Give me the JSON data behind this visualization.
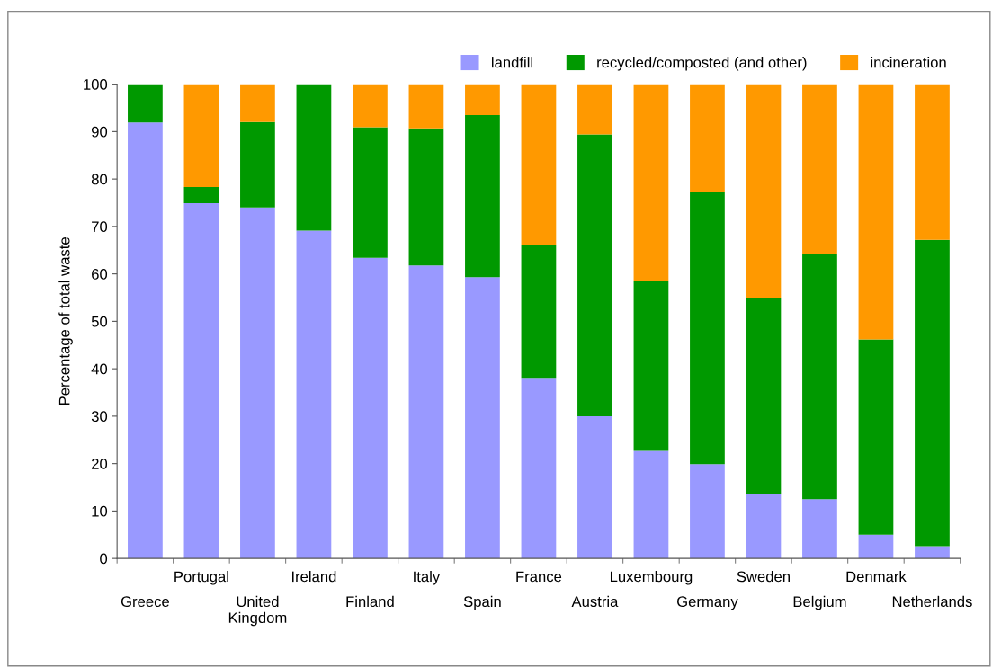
{
  "chart_data": {
    "type": "bar",
    "stacked": true,
    "ylabel": "Percentage of total waste",
    "categories": [
      "Greece",
      "Portugal",
      "United\nKingdom",
      "Ireland",
      "Finland",
      "Italy",
      "Spain",
      "France",
      "Austria",
      "Luxembourg",
      "Germany",
      "Sweden",
      "Belgium",
      "Denmark",
      "Netherlands"
    ],
    "series": [
      {
        "name": "landfill",
        "color": "#9999ff",
        "values": [
          91.9,
          74.9,
          74.0,
          69.1,
          63.4,
          61.8,
          59.3,
          38.1,
          30.0,
          22.7,
          19.9,
          13.6,
          12.5,
          5.0,
          2.6
        ]
      },
      {
        "name": "recycled/composted (and other)",
        "color": "#009900",
        "values": [
          8.1,
          3.4,
          18.0,
          30.9,
          27.5,
          28.9,
          34.2,
          28.1,
          59.4,
          35.7,
          57.3,
          41.4,
          51.8,
          41.2,
          64.6
        ]
      },
      {
        "name": "incineration",
        "color": "#ff9900",
        "values": [
          0,
          21.7,
          8.0,
          0,
          9.1,
          9.3,
          6.5,
          33.8,
          10.6,
          41.6,
          22.8,
          45.0,
          35.7,
          53.8,
          32.8
        ]
      }
    ],
    "ylim": [
      0,
      100
    ],
    "yticks": [
      0,
      10,
      20,
      30,
      40,
      50,
      60,
      70,
      80,
      90,
      100
    ],
    "grid": false,
    "legend": "top right"
  }
}
